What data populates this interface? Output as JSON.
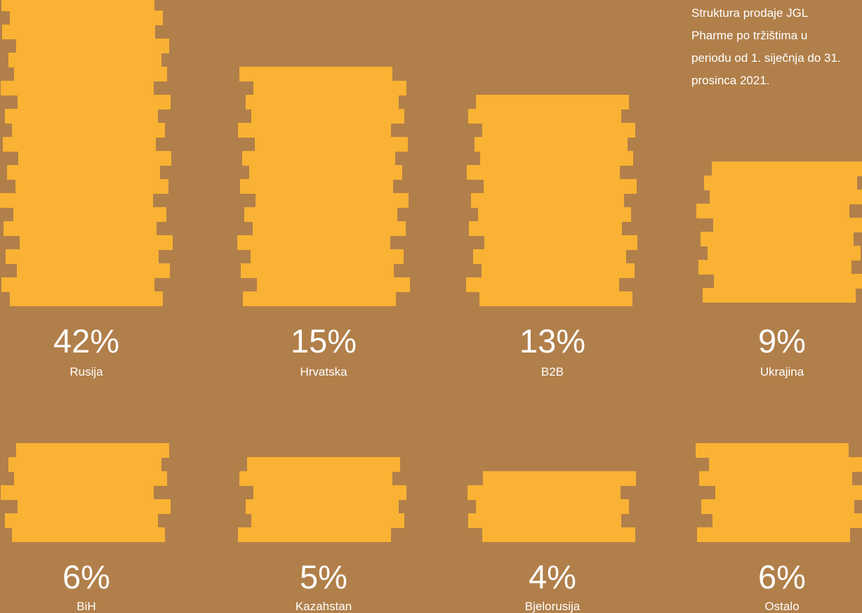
{
  "description": {
    "lines": [
      "Struktura prodaje JGL",
      "Pharme po tržištima u",
      "periodu od  1. siječnja do 31.",
      "prosinca 2021."
    ]
  },
  "colors": {
    "background": "#b17f4a",
    "coin": "#f9b233",
    "text": "#ffffff"
  },
  "chart_data": {
    "type": "bar",
    "unit": "%",
    "categories": [
      "Rusija",
      "Hrvatska",
      "B2B",
      "Ukrajina",
      "BiH",
      "Kazahstan",
      "Bjelorusija",
      "Ostalo"
    ],
    "values": [
      42,
      15,
      13,
      9,
      6,
      5,
      4,
      6
    ],
    "value_labels": [
      "42%",
      "15%",
      "13%",
      "9%",
      "6%",
      "5%",
      "4%",
      "6%"
    ],
    "title": "",
    "xlabel": "",
    "ylabel": "",
    "legend": "none",
    "grid": false
  }
}
